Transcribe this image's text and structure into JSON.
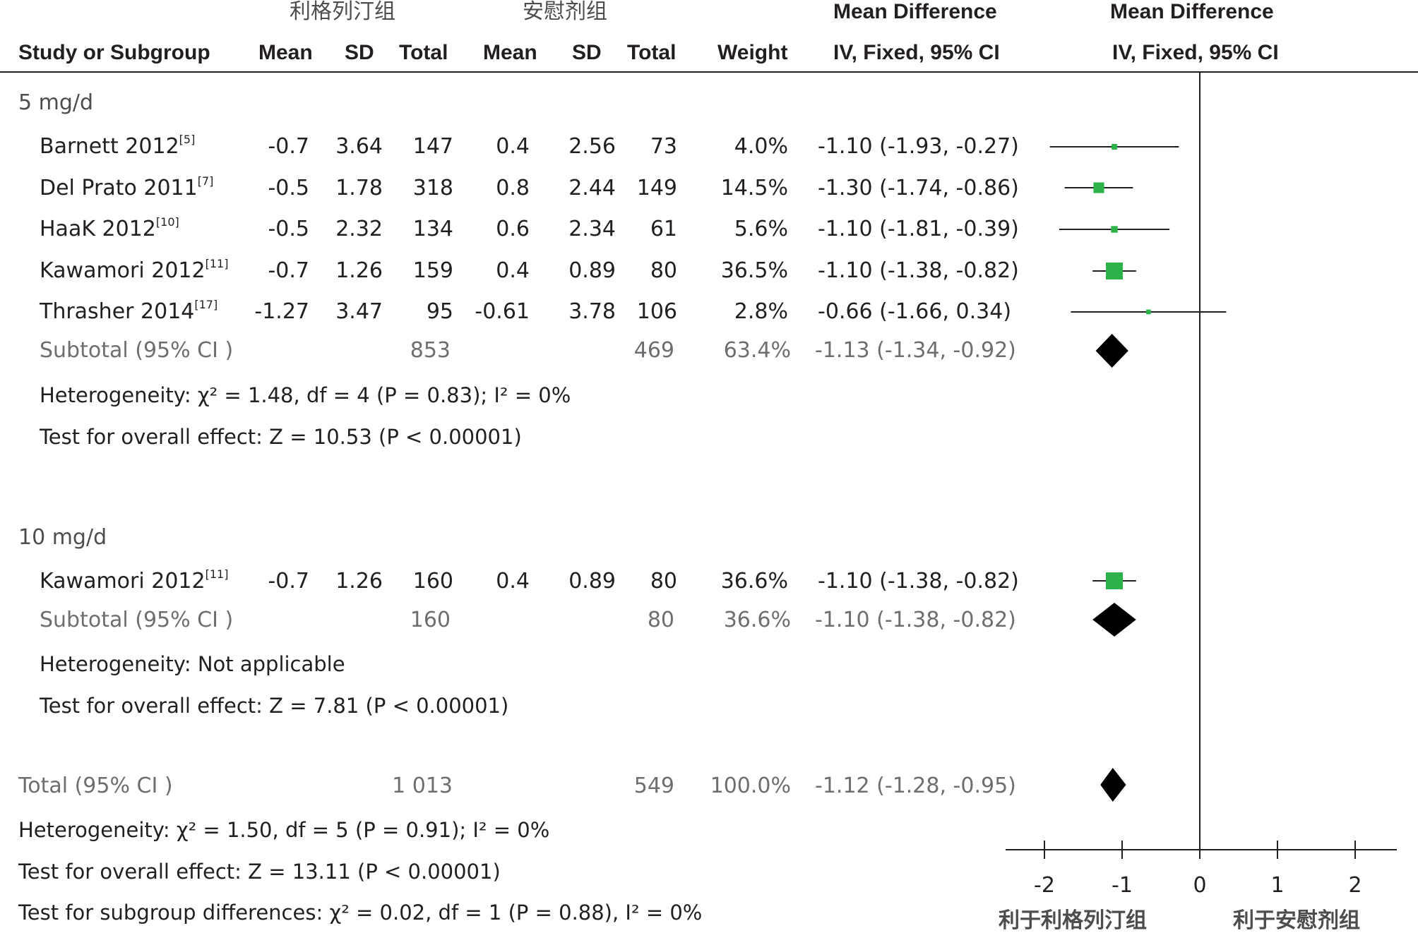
{
  "header": {
    "group_exp": "利格列汀组",
    "group_ctl": "安慰剂组",
    "md_left": "Mean Difference",
    "md_right": "Mean Difference",
    "col_study": "Study or Subgroup",
    "col_mean_e": "Mean",
    "col_sd_e": "SD",
    "col_total_e": "Total",
    "col_mean_c": "Mean",
    "col_sd_c": "SD",
    "col_total_c": "Total",
    "col_weight": "Weight",
    "col_ci": "IV, Fixed, 95% CI",
    "col_ci_plot": "IV, Fixed, 95% CI"
  },
  "subgroups": [
    {
      "name": "5 mg/d",
      "studies": [
        {
          "study": "Barnett 2012",
          "ref": "[5]",
          "mean_e": "-0.7",
          "sd_e": "3.64",
          "total_e": "147",
          "mean_c": "0.4",
          "sd_c": "2.56",
          "total_c": "73",
          "weight": "4.0%",
          "ci_text": "-1.10 (-1.93, -0.27)"
        },
        {
          "study": "Del Prato 2011",
          "ref": "[7]",
          "mean_e": "-0.5",
          "sd_e": "1.78",
          "total_e": "318",
          "mean_c": "0.8",
          "sd_c": "2.44",
          "total_c": "149",
          "weight": "14.5%",
          "ci_text": "-1.30 (-1.74, -0.86)"
        },
        {
          "study": "HaaK 2012",
          "ref": "[10]",
          "mean_e": "-0.5",
          "sd_e": "2.32",
          "total_e": "134",
          "mean_c": "0.6",
          "sd_c": "2.34",
          "total_c": "61",
          "weight": "5.6%",
          "ci_text": "-1.10 (-1.81, -0.39)"
        },
        {
          "study": "Kawamori 2012",
          "ref": "[11]",
          "mean_e": "-0.7",
          "sd_e": "1.26",
          "total_e": "159",
          "mean_c": "0.4",
          "sd_c": "0.89",
          "total_c": "80",
          "weight": "36.5%",
          "ci_text": "-1.10 (-1.38, -0.82)"
        },
        {
          "study": "Thrasher 2014",
          "ref": "[17]",
          "mean_e": "-1.27",
          "sd_e": "3.47",
          "total_e": "95",
          "mean_c": "-0.61",
          "sd_c": "3.78",
          "total_c": "106",
          "weight": "2.8%",
          "ci_text": "-0.66 (-1.66, 0.34)"
        }
      ],
      "subtotal": {
        "label": "Subtotal (95% CI )",
        "total_e": "853",
        "total_c": "469",
        "weight": "63.4%",
        "ci_text": "-1.13 (-1.34, -0.92)"
      },
      "heterogeneity": "Heterogeneity: χ² = 1.48, df = 4 (P = 0.83); I² = 0%",
      "overall": "Test for overall effect: Z = 10.53 (P < 0.00001)"
    },
    {
      "name": "10 mg/d",
      "studies": [
        {
          "study": "Kawamori 2012",
          "ref": "[11]",
          "mean_e": "-0.7",
          "sd_e": "1.26",
          "total_e": "160",
          "mean_c": "0.4",
          "sd_c": "0.89",
          "total_c": "80",
          "weight": "36.6%",
          "ci_text": "-1.10 (-1.38, -0.82)"
        }
      ],
      "subtotal": {
        "label": "Subtotal (95% CI )",
        "total_e": "160",
        "total_c": "80",
        "weight": "36.6%",
        "ci_text": "-1.10 (-1.38, -0.82)"
      },
      "heterogeneity": "Heterogeneity: Not applicable",
      "overall": "Test for overall effect: Z = 7.81 (P < 0.00001)"
    }
  ],
  "total": {
    "label": "Total (95% CI )",
    "total_e": "1 013",
    "total_c": "549",
    "weight": "100.0%",
    "ci_text": "-1.12 (-1.28, -0.95)"
  },
  "footer": {
    "heterogeneity": "Heterogeneity: χ² = 1.50, df = 5 (P = 0.91); I² = 0%",
    "overall": "Test for overall effect: Z = 13.11 (P < 0.00001)",
    "subgroup_diff": "Test for subgroup differences: χ² = 0.02, df = 1 (P = 0.88), I² = 0%"
  },
  "axis": {
    "favours_left": "利于利格列汀组",
    "favours_right": "利于安慰剂组"
  },
  "colors": {
    "marker": "#2bb34a",
    "diamond": "#000000",
    "line": "#231f20"
  },
  "chart_data": {
    "type": "forest",
    "xlim": [
      -2.5,
      2.5
    ],
    "xticks": [
      -2,
      -1,
      0,
      1,
      2
    ],
    "tick_labels": [
      "-2",
      "-1",
      "0",
      "1",
      "2"
    ],
    "reference_line": 0,
    "studies": [
      {
        "group": "5 mg/d",
        "name": "Barnett 2012",
        "md": -1.1,
        "lo": -1.93,
        "hi": -0.27,
        "weight": 4.0
      },
      {
        "group": "5 mg/d",
        "name": "Del Prato 2011",
        "md": -1.3,
        "lo": -1.74,
        "hi": -0.86,
        "weight": 14.5
      },
      {
        "group": "5 mg/d",
        "name": "HaaK 2012",
        "md": -1.1,
        "lo": -1.81,
        "hi": -0.39,
        "weight": 5.6
      },
      {
        "group": "5 mg/d",
        "name": "Kawamori 2012",
        "md": -1.1,
        "lo": -1.38,
        "hi": -0.82,
        "weight": 36.5
      },
      {
        "group": "5 mg/d",
        "name": "Thrasher 2014",
        "md": -0.66,
        "lo": -1.66,
        "hi": 0.34,
        "weight": 2.8
      },
      {
        "group": "10 mg/d",
        "name": "Kawamori 2012",
        "md": -1.1,
        "lo": -1.38,
        "hi": -0.82,
        "weight": 36.6
      }
    ],
    "pooled": [
      {
        "name": "Subtotal 5 mg/d",
        "md": -1.13,
        "lo": -1.34,
        "hi": -0.92
      },
      {
        "name": "Subtotal 10 mg/d",
        "md": -1.1,
        "lo": -1.38,
        "hi": -0.82
      },
      {
        "name": "Total",
        "md": -1.12,
        "lo": -1.28,
        "hi": -0.95
      }
    ]
  }
}
